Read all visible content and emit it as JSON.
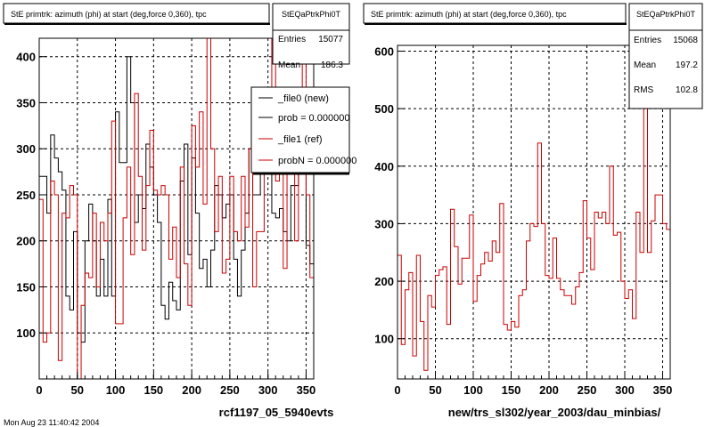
{
  "chart_data": [
    {
      "type": "histogram",
      "title": "StE primtrk: azimuth (phi) at start (deg,force 0,360), tpc",
      "xlabel": "rcf1197_05_5940evts",
      "xlim": [
        0,
        360
      ],
      "ylim": [
        50,
        420
      ],
      "x_ticks": [
        "0",
        "50",
        "100",
        "150",
        "200",
        "250",
        "300",
        "350"
      ],
      "y_ticks": [
        "100",
        "150",
        "200",
        "250",
        "300",
        "350",
        "400"
      ],
      "grid": true,
      "stats": {
        "name": "StEQaPtrkPhi0T",
        "rows": [
          {
            "label": "Entries",
            "value": "15077"
          },
          {
            "label": "Mean",
            "value": "186.3"
          }
        ]
      },
      "legend": {
        "placement": "top-right",
        "entries": [
          {
            "label": "_file0 (new)",
            "color": "#000000"
          },
          {
            "label": "prob = 0.000000",
            "color": "#000000"
          },
          {
            "label": "_file1 (ref)",
            "color": "#cc0000"
          },
          {
            "label": "probN = 0.000000",
            "color": "#cc0000"
          }
        ]
      },
      "bin_width": 5,
      "series": [
        {
          "color": "#000000",
          "values": [
            270,
            270,
            230,
            315,
            290,
            275,
            255,
            140,
            125,
            210,
            100,
            90,
            200,
            240,
            200,
            140,
            180,
            140,
            245,
            140,
            340,
            285,
            285,
            400,
            350,
            220,
            250,
            235,
            305,
            280,
            250,
            220,
            130,
            115,
            155,
            135,
            125,
            265,
            305,
            185,
            290,
            230,
            170,
            180,
            150,
            190,
            260,
            250,
            225,
            240,
            250,
            180,
            140,
            190,
            230,
            300,
            250,
            250,
            310,
            340,
            290,
            230,
            225,
            235,
            210,
            200,
            260,
            260,
            350,
            330,
            195,
            175
          ]
        },
        {
          "color": "#cc0000",
          "values": [
            245,
            90,
            100,
            265,
            250,
            70,
            230,
            225,
            260,
            250,
            50,
            130,
            165,
            160,
            230,
            150,
            220,
            200,
            230,
            330,
            110,
            110,
            225,
            280,
            185,
            360,
            270,
            190,
            260,
            320,
            255,
            250,
            260,
            250,
            180,
            215,
            160,
            280,
            175,
            130,
            325,
            280,
            340,
            240,
            440,
            300,
            210,
            270,
            165,
            180,
            270,
            210,
            200,
            270,
            215,
            300,
            150,
            210,
            210,
            305,
            300,
            420,
            265,
            330,
            170,
            280,
            280,
            200,
            350,
            420,
            250,
            160
          ]
        }
      ]
    },
    {
      "type": "histogram",
      "title": "StE primtrk: azimuth (phi) at start (deg,force 0,360), tpc",
      "xlabel": "new/trs_sl302/year_2003/dau_minbias/",
      "xlim": [
        0,
        360
      ],
      "ylim": [
        30,
        610
      ],
      "x_ticks": [
        "0",
        "50",
        "100",
        "150",
        "200",
        "250",
        "300",
        "350"
      ],
      "y_ticks": [
        "100",
        "200",
        "300",
        "400",
        "500",
        "600"
      ],
      "grid": true,
      "stats": {
        "name": "StEQaPtrkPhi0T",
        "rows": [
          {
            "label": "Entries",
            "value": "15068"
          },
          {
            "label": "Mean",
            "value": "197.2"
          },
          {
            "label": "RMS",
            "value": "102.8"
          }
        ]
      },
      "bin_width": 5,
      "series": [
        {
          "color": "#cc0000",
          "values": [
            245,
            90,
            185,
            215,
            70,
            245,
            130,
            45,
            175,
            155,
            210,
            220,
            225,
            125,
            325,
            260,
            195,
            240,
            240,
            315,
            165,
            210,
            230,
            250,
            235,
            270,
            250,
            335,
            125,
            115,
            130,
            120,
            175,
            185,
            270,
            300,
            295,
            440,
            300,
            210,
            205,
            275,
            205,
            185,
            175,
            175,
            160,
            190,
            215,
            340,
            275,
            220,
            320,
            310,
            320,
            300,
            400,
            280,
            285,
            200,
            170,
            185,
            135,
            320,
            250,
            580,
            250,
            305,
            350,
            350,
            300,
            290
          ]
        }
      ]
    }
  ],
  "footer": {
    "timestamp": "Mon Aug 23 11:40:42 2004"
  },
  "colors": {
    "grid": "#000000",
    "frame": "#000000",
    "background": "#ffffff"
  }
}
